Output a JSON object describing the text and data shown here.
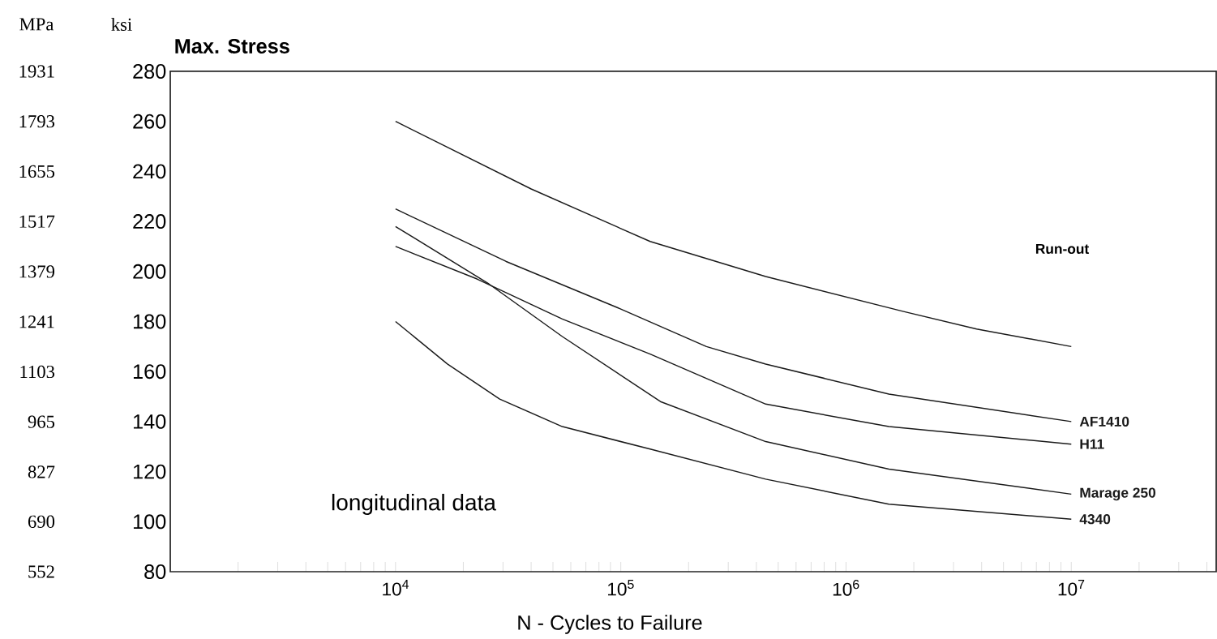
{
  "chart_data": {
    "type": "line",
    "title": "Max. Stress",
    "xlabel": "N - Cycles to Failure",
    "ylabel": "ksi",
    "y2label": "MPa",
    "log": "x",
    "marker": "none",
    "line_style": "solid",
    "annotations": [
      "Run-out",
      "longitudinal data"
    ],
    "xlim": [
      1000,
      44000000
    ],
    "ylim": [
      80,
      280
    ],
    "y2lim": [
      552,
      1931
    ],
    "yticks": [
      80,
      100,
      120,
      140,
      160,
      180,
      200,
      220,
      240,
      260,
      280
    ],
    "y2ticks": [
      552,
      690,
      827,
      965,
      1103,
      1241,
      1379,
      1517,
      1655,
      1793,
      1931
    ],
    "xticks": [
      {
        "value": 2000,
        "label": null
      },
      {
        "value": 3000,
        "label": null
      },
      {
        "value": 4000,
        "label": null
      },
      {
        "value": 5000,
        "label": null
      },
      {
        "value": 6000,
        "label": null
      },
      {
        "value": 7000,
        "label": null
      },
      {
        "value": 8000,
        "label": null
      },
      {
        "value": 9000,
        "label": null
      },
      {
        "value": 10000,
        "label": "10$^{4}$"
      },
      {
        "value": 20000,
        "label": null
      },
      {
        "value": 30000,
        "label": null
      },
      {
        "value": 40000,
        "label": null
      },
      {
        "value": 50000,
        "label": null
      },
      {
        "value": 60000,
        "label": null
      },
      {
        "value": 70000,
        "label": null
      },
      {
        "value": 80000,
        "label": null
      },
      {
        "value": 90000,
        "label": null
      },
      {
        "value": 100000,
        "label": "10$^{5}$"
      },
      {
        "value": 200000,
        "label": null
      },
      {
        "value": 300000,
        "label": null
      },
      {
        "value": 400000,
        "label": null
      },
      {
        "value": 500000,
        "label": null
      },
      {
        "value": 600000,
        "label": null
      },
      {
        "value": 700000,
        "label": null
      },
      {
        "value": 800000,
        "label": null
      },
      {
        "value": 900000,
        "label": null
      },
      {
        "value": 1000000,
        "label": "10$^{6}$"
      },
      {
        "value": 2000000,
        "label": null
      },
      {
        "value": 3000000,
        "label": null
      },
      {
        "value": 4000000,
        "label": null
      },
      {
        "value": 5000000,
        "label": null
      },
      {
        "value": 6000000,
        "label": null
      },
      {
        "value": 7000000,
        "label": null
      },
      {
        "value": 8000000,
        "label": null
      },
      {
        "value": 9000000,
        "label": null
      },
      {
        "value": 10000000,
        "label": "10$^{7}$"
      },
      {
        "value": 20000000,
        "label": null
      },
      {
        "value": 30000000,
        "label": null
      },
      {
        "value": 40000000,
        "label": null
      }
    ],
    "series": [
      {
        "color": "#1a1a1a",
        "x": [
          10000,
          40000,
          135000,
          440000,
          1800000,
          3800000,
          10000000
        ],
        "values": [
          260,
          233,
          212,
          198,
          184,
          177,
          170
        ]
      },
      {
        "name": "AF1410",
        "color": "#1a1a1a",
        "x": [
          10000,
          31000,
          100000,
          240000,
          440000,
          1550000,
          10000000
        ],
        "values": [
          225,
          204,
          185,
          170,
          163,
          151,
          140
        ]
      },
      {
        "name": "H11",
        "color": "#1a1a1a",
        "x": [
          10000,
          23000,
          55000,
          135000,
          440000,
          1550000,
          10000000
        ],
        "values": [
          210,
          197,
          181,
          167,
          147,
          138,
          131
        ]
      },
      {
        "name": "Marage 250",
        "color": "#1a1a1a",
        "x": [
          10000,
          26000,
          55000,
          150000,
          440000,
          1550000,
          10000000
        ],
        "values": [
          218,
          195,
          174,
          148,
          132,
          121,
          111
        ]
      },
      {
        "name": "4340",
        "color": "#1a1a1a",
        "x": [
          10000,
          17000,
          29000,
          55000,
          135000,
          440000,
          1550000,
          10000000
        ],
        "values": [
          180,
          163,
          149,
          138,
          129,
          117,
          107,
          101
        ]
      }
    ]
  }
}
